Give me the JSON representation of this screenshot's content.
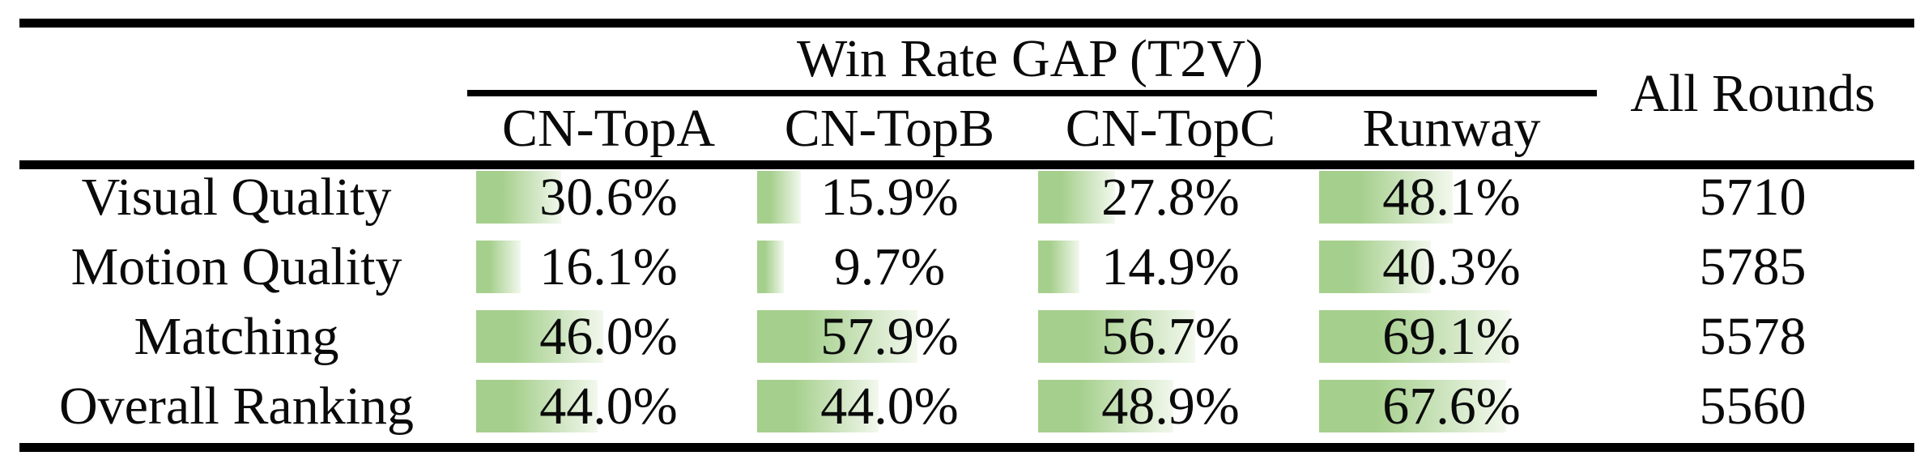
{
  "table": {
    "span_header": "Win Rate GAP (T2V)",
    "all_rounds_header": "All Rounds",
    "model_columns": [
      "CN-TopA",
      "CN-TopB",
      "CN-TopC",
      "Runway"
    ],
    "rows": [
      {
        "label": "Visual Quality",
        "cells": [
          {
            "text": "30.6%",
            "value": 30.6
          },
          {
            "text": "15.9%",
            "value": 15.9
          },
          {
            "text": "27.8%",
            "value": 27.8
          },
          {
            "text": "48.1%",
            "value": 48.1
          }
        ],
        "all_rounds": "5710"
      },
      {
        "label": "Motion Quality",
        "cells": [
          {
            "text": "16.1%",
            "value": 16.1
          },
          {
            "text": "9.7%",
            "value": 9.7
          },
          {
            "text": "14.9%",
            "value": 14.9
          },
          {
            "text": "40.3%",
            "value": 40.3
          }
        ],
        "all_rounds": "5785"
      },
      {
        "label": "Matching",
        "cells": [
          {
            "text": "46.0%",
            "value": 46.0
          },
          {
            "text": "57.9%",
            "value": 57.9
          },
          {
            "text": "56.7%",
            "value": 56.7
          },
          {
            "text": "69.1%",
            "value": 69.1
          }
        ],
        "all_rounds": "5578"
      },
      {
        "label": "Overall Ranking",
        "cells": [
          {
            "text": "44.0%",
            "value": 44.0
          },
          {
            "text": "44.0%",
            "value": 44.0
          },
          {
            "text": "48.9%",
            "value": 48.9
          },
          {
            "text": "67.6%",
            "value": 67.6
          }
        ],
        "all_rounds": "5560"
      }
    ],
    "colors": {
      "bar_green": "#a5cf8c",
      "bar_fade": "#f2f8ed",
      "rule_black": "#000000",
      "text_black": "#0a0a0a"
    }
  }
}
